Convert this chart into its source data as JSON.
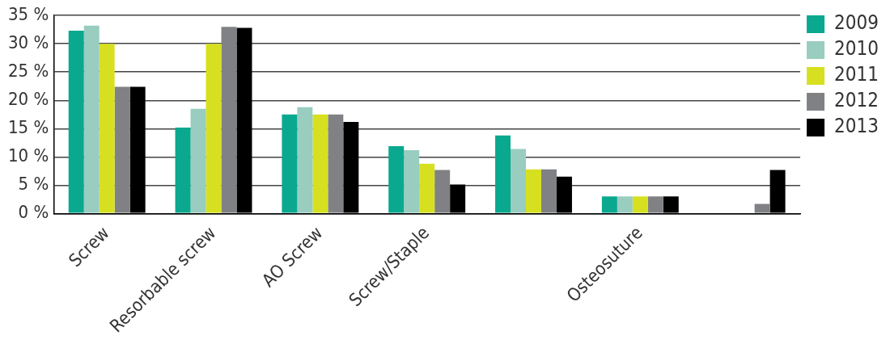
{
  "chart_data": {
    "type": "bar",
    "categories": [
      "Screw",
      "Resorbable screw",
      "AO Screw",
      "Screw/Staple",
      null,
      "Osteosuture",
      null
    ],
    "series": [
      {
        "name": "2009",
        "color": "#0aa88f",
        "values": [
          32.3,
          15.2,
          17.5,
          11.9,
          13.8,
          3.0,
          null
        ]
      },
      {
        "name": "2010",
        "color": "#98cdbf",
        "values": [
          33.2,
          18.5,
          18.8,
          11.2,
          11.4,
          3.0,
          null
        ]
      },
      {
        "name": "2011",
        "color": "#d6e021",
        "values": [
          30.0,
          30.0,
          17.5,
          8.8,
          7.8,
          3.0,
          null
        ]
      },
      {
        "name": "2012",
        "color": "#808184",
        "values": [
          22.4,
          33.0,
          17.5,
          7.7,
          7.8,
          3.0,
          1.7
        ]
      },
      {
        "name": "2013",
        "color": "#000000",
        "values": [
          22.4,
          32.8,
          16.2,
          5.1,
          6.5,
          3.0,
          7.7
        ]
      }
    ],
    "ylim": [
      0,
      35
    ],
    "yticks": [
      {
        "value": 0,
        "label": "0 %"
      },
      {
        "value": 5,
        "label": "5 %"
      },
      {
        "value": 10,
        "label": "10 %"
      },
      {
        "value": 15,
        "label": "15 %"
      },
      {
        "value": 20,
        "label": "20 %"
      },
      {
        "value": 25,
        "label": "25 %"
      },
      {
        "value": 30,
        "label": "30 %"
      },
      {
        "value": 35,
        "label": "35 %"
      }
    ],
    "grid": "y",
    "legend": "right"
  }
}
